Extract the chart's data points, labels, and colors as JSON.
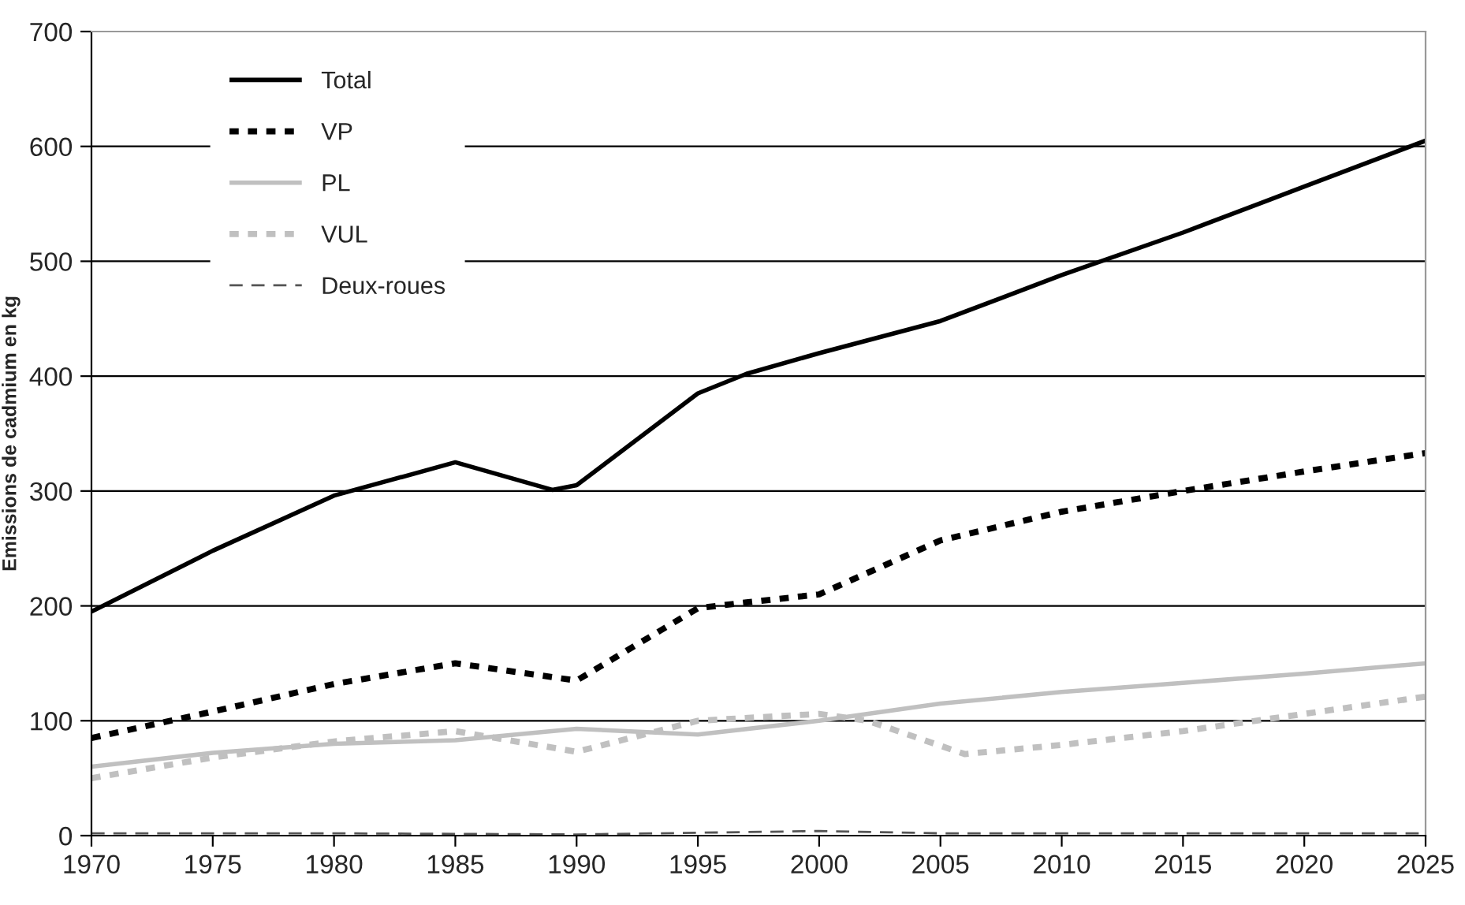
{
  "chart_data": {
    "type": "line",
    "ylabel": "Emissions de cadmium en kg",
    "xlim": [
      1970,
      2025
    ],
    "xticks": [
      1970,
      1975,
      1980,
      1985,
      1990,
      1995,
      2000,
      2005,
      2010,
      2015,
      2020,
      2025
    ],
    "ylim": [
      0,
      700
    ],
    "yticks": [
      0,
      100,
      200,
      300,
      400,
      500,
      600,
      700
    ],
    "grid": "y",
    "legend": "top left",
    "marker": "none",
    "series": [
      {
        "name": "Total",
        "color": "#000000",
        "line_style": "solid",
        "x": [
          1970,
          1975,
          1980,
          1985,
          1989,
          1990,
          1995,
          1997,
          2000,
          2005,
          2010,
          2015,
          2020,
          2025
        ],
        "values": [
          195,
          248,
          296,
          325,
          301,
          305,
          385,
          402,
          420,
          448,
          488,
          525,
          565,
          605
        ]
      },
      {
        "name": "VP",
        "color": "#000000",
        "line_style": "dotted",
        "x": [
          1970,
          1975,
          1980,
          1985,
          1990,
          1995,
          1997,
          2000,
          2005,
          2010,
          2015,
          2020,
          2025
        ],
        "values": [
          85,
          108,
          132,
          150,
          135,
          198,
          203,
          210,
          257,
          282,
          300,
          317,
          333
        ]
      },
      {
        "name": "PL",
        "color": "#c0c0c0",
        "line_style": "solid",
        "x": [
          1970,
          1975,
          1980,
          1985,
          1990,
          1995,
          2000,
          2005,
          2010,
          2015,
          2020,
          2025
        ],
        "values": [
          60,
          72,
          80,
          83,
          93,
          88,
          100,
          115,
          125,
          133,
          141,
          150
        ]
      },
      {
        "name": "VUL",
        "color": "#c0c0c0",
        "line_style": "dotted",
        "x": [
          1970,
          1975,
          1980,
          1985,
          1990,
          1995,
          2000,
          2002,
          2006,
          2010,
          2015,
          2020,
          2025
        ],
        "values": [
          50,
          68,
          82,
          91,
          73,
          100,
          106,
          100,
          71,
          79,
          91,
          106,
          121
        ]
      },
      {
        "name": "Deux-roues",
        "color": "#555555",
        "line_style": "dashed",
        "x": [
          1970,
          1980,
          1990,
          2000,
          2005,
          2025
        ],
        "values": [
          2,
          2,
          1,
          4,
          2,
          2
        ]
      }
    ]
  }
}
